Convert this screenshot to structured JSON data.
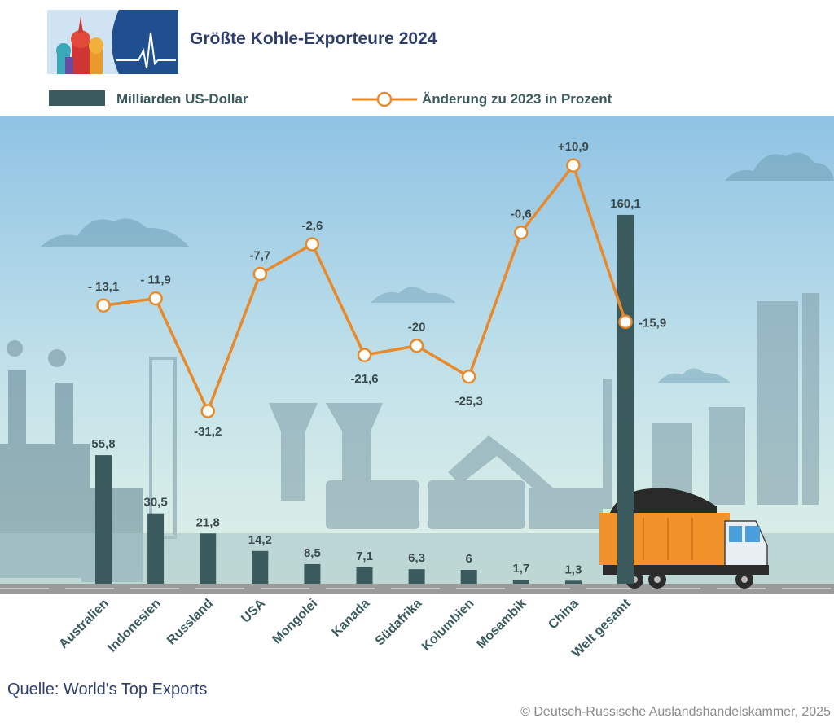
{
  "title": "Größte Kohle-Exporteure 2024",
  "legend": {
    "bars": "Milliarden US-Dollar",
    "line": "Änderung zu 2023 in Prozent"
  },
  "source": "Quelle: World's Top Exports",
  "copyright": "© Deutsch-Russische Auslandshandelskammer, 2025",
  "colors": {
    "bar": "#3b5a5e",
    "line": "#e8892b",
    "sky_top": "#8fc3e4",
    "sky_bottom": "#dff0e8",
    "title": "#2f3f6b"
  },
  "chart_data": {
    "type": "bar",
    "title": "Größte Kohle-Exporteure 2024",
    "categories": [
      "Australien",
      "Indonesien",
      "Russland",
      "USA",
      "Mongolei",
      "Kanada",
      "Südafrika",
      "Kolumbien",
      "Mosambik",
      "China",
      "Welt gesamt"
    ],
    "series": [
      {
        "name": "Milliarden US-Dollar",
        "type": "bar",
        "values": [
          55.8,
          30.5,
          21.8,
          14.2,
          8.5,
          7.1,
          6.3,
          6,
          1.7,
          1.3,
          160.1
        ],
        "labels": [
          "55,8",
          "30,5",
          "21,8",
          "14,2",
          "8,5",
          "7,1",
          "6,3",
          "6",
          "1,7",
          "1,3",
          "160,1"
        ]
      },
      {
        "name": "Änderung zu 2023 in Prozent",
        "type": "line",
        "values": [
          -13.1,
          -11.9,
          -31.2,
          -7.7,
          -2.6,
          -21.6,
          -20,
          -25.3,
          -0.6,
          10.9,
          -15.9
        ],
        "labels": [
          "- 13,1",
          "- 11,9",
          "-31,2",
          "-7,7",
          "-2,6",
          "-21,6",
          "-20",
          "-25,3",
          "-0,6",
          "+10,9",
          "-15,9"
        ]
      }
    ],
    "grid": false,
    "legend_position": "top-left"
  }
}
